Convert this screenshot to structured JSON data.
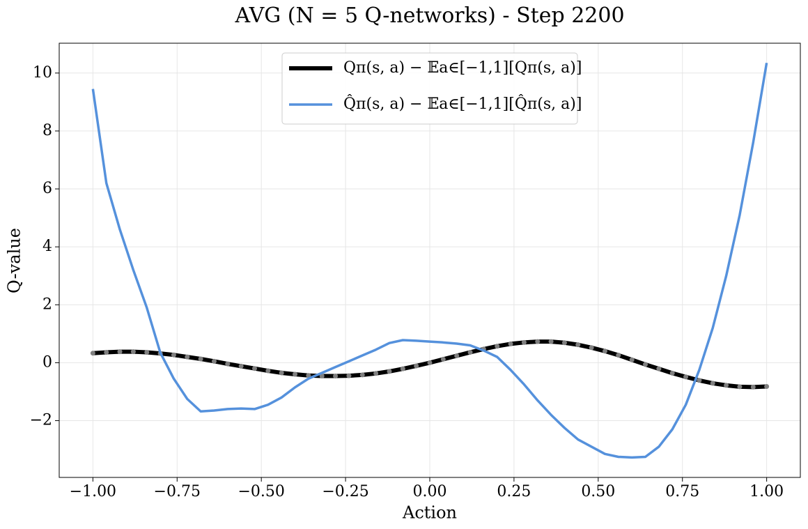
{
  "chart_data": {
    "type": "line",
    "title": "AVG (N = 5 Q-networks) - Step 2200",
    "x_label": "Action",
    "y_label": "Q-value",
    "x": [
      -1.0,
      -0.96,
      -0.92,
      -0.88,
      -0.84,
      -0.8,
      -0.76,
      -0.72,
      -0.68,
      -0.64,
      -0.6,
      -0.56,
      -0.52,
      -0.48,
      -0.44,
      -0.4,
      -0.36,
      -0.32,
      -0.28,
      -0.24,
      -0.2,
      -0.16,
      -0.12,
      -0.08,
      -0.04,
      0,
      0.04,
      0.08,
      0.12,
      0.16,
      0.2,
      0.24,
      0.28,
      0.32,
      0.36,
      0.4,
      0.44,
      0.48,
      0.52,
      0.56,
      0.6,
      0.64,
      0.68,
      0.72,
      0.76,
      0.8,
      0.84,
      0.88,
      0.92,
      0.96,
      1.0
    ],
    "series": [
      {
        "name": "Qπ(s, a) − 𝔼a∈[−1,1][Qπ(s, a)]",
        "color": "#000000",
        "marker_color": "#808080",
        "values": [
          0.33,
          0.36,
          0.38,
          0.38,
          0.36,
          0.32,
          0.27,
          0.2,
          0.13,
          0.05,
          -0.04,
          -0.12,
          -0.2,
          -0.28,
          -0.35,
          -0.4,
          -0.44,
          -0.46,
          -0.46,
          -0.45,
          -0.42,
          -0.37,
          -0.3,
          -0.21,
          -0.11,
          0,
          0.12,
          0.24,
          0.36,
          0.47,
          0.57,
          0.65,
          0.7,
          0.73,
          0.73,
          0.69,
          0.62,
          0.52,
          0.4,
          0.26,
          0.1,
          -0.06,
          -0.21,
          -0.36,
          -0.49,
          -0.61,
          -0.71,
          -0.78,
          -0.83,
          -0.84,
          -0.82
        ]
      },
      {
        "name": "Q̂π(s, a) − 𝔼a∈[−1,1][Q̂π(s, a)]",
        "color": "#5591dc",
        "values": [
          9.45,
          6.2,
          4.6,
          3.2,
          1.9,
          0.35,
          -0.55,
          -1.25,
          -1.68,
          -1.65,
          -1.6,
          -1.58,
          -1.6,
          -1.45,
          -1.2,
          -0.85,
          -0.55,
          -0.35,
          -0.15,
          0.05,
          0.25,
          0.45,
          0.68,
          0.78,
          0.76,
          0.73,
          0.7,
          0.66,
          0.6,
          0.42,
          0.2,
          -0.25,
          -0.75,
          -1.3,
          -1.8,
          -2.25,
          -2.65,
          -2.9,
          -3.15,
          -3.25,
          -3.27,
          -3.25,
          -2.9,
          -2.3,
          -1.45,
          -0.25,
          1.2,
          3.0,
          5.1,
          7.6,
          10.35
        ]
      }
    ],
    "xlim": [
      -1.1,
      1.1
    ],
    "xticks": [
      {
        "value": -1,
        "label": "−1.00"
      },
      {
        "value": -0.75,
        "label": "−0.75"
      },
      {
        "value": -0.5,
        "label": "−0.50"
      },
      {
        "value": -0.25,
        "label": "−0.25"
      },
      {
        "value": 0,
        "label": "0.00"
      },
      {
        "value": 0.25,
        "label": "0.25"
      },
      {
        "value": 0.5,
        "label": "0.50"
      },
      {
        "value": 0.75,
        "label": "0.75"
      },
      {
        "value": 1,
        "label": "1.00"
      }
    ],
    "ylim": [
      -3.96,
      11.03
    ],
    "yticks": [
      {
        "value": -2,
        "label": "−2"
      },
      0,
      2,
      4,
      6,
      8,
      10
    ],
    "grid": true,
    "legend": "upper center"
  }
}
